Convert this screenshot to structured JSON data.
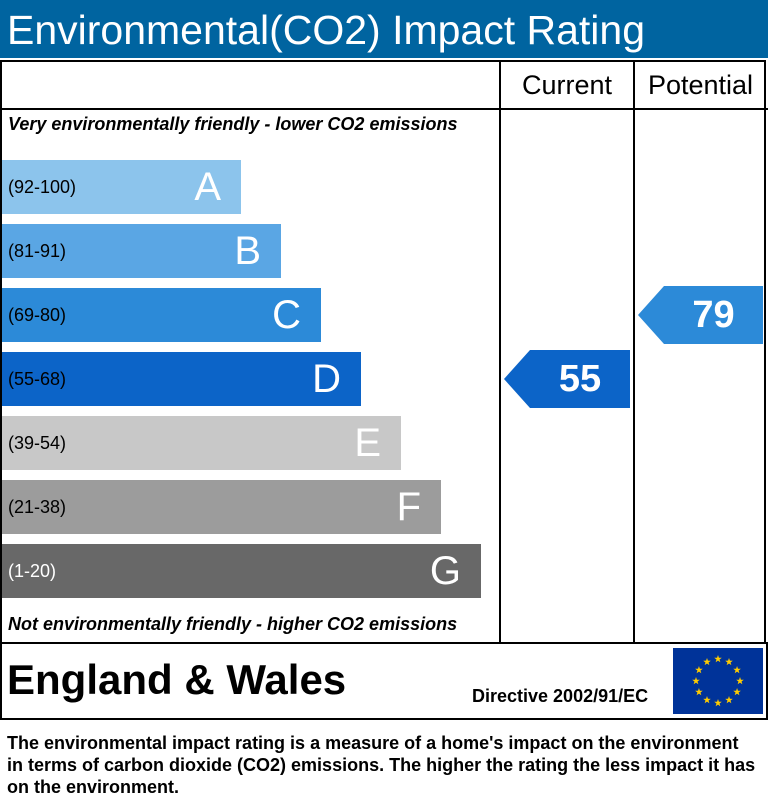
{
  "title": "Environmental(CO2) Impact Rating",
  "columns": {
    "current": "Current",
    "potential": "Potential"
  },
  "captions": {
    "top": "Very environmentally friendly - lower CO2 emissions",
    "bottom": "Not environmentally friendly - higher CO2 emissions"
  },
  "chart_data": {
    "type": "bar",
    "categories": [
      "A",
      "B",
      "C",
      "D",
      "E",
      "F",
      "G"
    ],
    "bands": [
      {
        "letter": "A",
        "range": "(92-100)",
        "min": 92,
        "max": 100,
        "color": "#8cc4ec",
        "range_color": "#000000"
      },
      {
        "letter": "B",
        "range": "(81-91)",
        "min": 81,
        "max": 91,
        "color": "#5aa6e4",
        "range_color": "#000000"
      },
      {
        "letter": "C",
        "range": "(69-80)",
        "min": 69,
        "max": 80,
        "color": "#2c8ad8",
        "range_color": "#000000"
      },
      {
        "letter": "D",
        "range": "(55-68)",
        "min": 55,
        "max": 68,
        "color": "#0c64c8",
        "range_color": "#000000"
      },
      {
        "letter": "E",
        "range": "(39-54)",
        "min": 39,
        "max": 54,
        "color": "#c8c8c8",
        "range_color": "#000000"
      },
      {
        "letter": "F",
        "range": "(21-38)",
        "min": 21,
        "max": 38,
        "color": "#9c9c9c",
        "range_color": "#000000"
      },
      {
        "letter": "G",
        "range": "(1-20)",
        "min": 1,
        "max": 20,
        "color": "#686868",
        "range_color": "#ffffff"
      }
    ],
    "current": {
      "value": 55,
      "band": "D",
      "color": "#0c64c8"
    },
    "potential": {
      "value": 79,
      "band": "C",
      "color": "#2c8ad8"
    }
  },
  "footer": {
    "country": "England & Wales",
    "directive": "Directive 2002/91/EC",
    "flag_icon": "eu-flag-icon"
  },
  "description": "The environmental impact rating is a measure of a home's impact on the environment in terms of carbon dioxide (CO2) emissions. The higher the rating the less impact it has on the environment."
}
